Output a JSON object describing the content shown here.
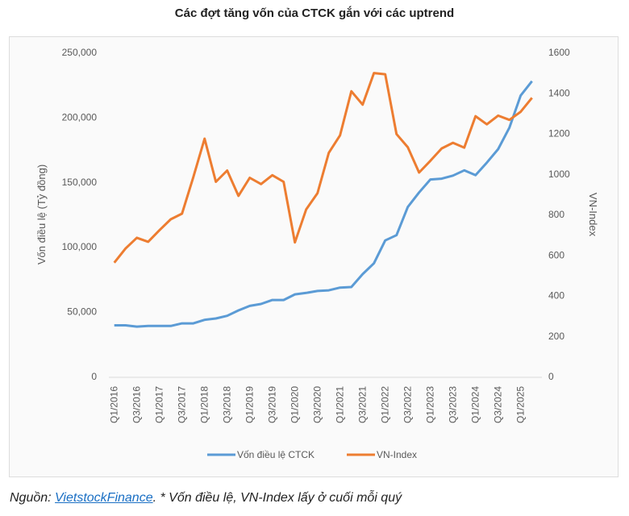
{
  "title": "Các đợt tăng vốn của CTCK gắn với các uptrend",
  "footer": {
    "prefix": "Nguồn: ",
    "link": "VietstockFinance",
    "suffix": ". * Vốn điều lệ, VN-Index lấy ở cuối mỗi quý"
  },
  "chart_data": {
    "type": "line",
    "title": "Các đợt tăng vốn của CTCK gắn với các uptrend",
    "x": [
      "Q1/2016",
      "Q2/2016",
      "Q3/2016",
      "Q4/2016",
      "Q1/2017",
      "Q2/2017",
      "Q3/2017",
      "Q4/2017",
      "Q1/2018",
      "Q2/2018",
      "Q3/2018",
      "Q4/2018",
      "Q1/2019",
      "Q2/2019",
      "Q3/2019",
      "Q4/2019",
      "Q1/2020",
      "Q2/2020",
      "Q3/2020",
      "Q4/2020",
      "Q1/2021",
      "Q2/2021",
      "Q3/2021",
      "Q4/2021",
      "Q1/2022",
      "Q2/2022",
      "Q3/2022",
      "Q4/2022",
      "Q1/2023",
      "Q2/2023",
      "Q3/2023",
      "Q4/2023",
      "Q1/2024",
      "Q2/2024",
      "Q3/2024",
      "Q4/2024",
      "Q1/2025",
      "Q2/2025"
    ],
    "tick_labels": [
      "Q1/2016",
      "Q3/2016",
      "Q1/2017",
      "Q3/2017",
      "Q1/2018",
      "Q3/2018",
      "Q1/2019",
      "Q3/2019",
      "Q1/2020",
      "Q3/2020",
      "Q1/2021",
      "Q3/2021",
      "Q1/2022",
      "Q3/2022",
      "Q1/2023",
      "Q3/2023",
      "Q1/2024",
      "Q3/2024",
      "Q1/2025"
    ],
    "ylabel": "Vốn điều lệ (Tỷ đồng)",
    "y2label": "VN-Index",
    "ylim": [
      0,
      250000
    ],
    "y2lim": [
      0,
      1600
    ],
    "yticks": [
      "0",
      "50,000",
      "100,000",
      "150,000",
      "200,000",
      "250,000"
    ],
    "y2ticks": [
      "0",
      "200",
      "400",
      "600",
      "800",
      "1000",
      "1200",
      "1400",
      "1600"
    ],
    "grid": false,
    "legend": "bottom",
    "series": [
      {
        "name": "Vốn điều lệ CTCK",
        "axis": "left",
        "color": "#5b9bd5",
        "values": [
          39500,
          39500,
          38500,
          39000,
          39000,
          39000,
          41000,
          41000,
          43700,
          44800,
          46800,
          51000,
          54500,
          56000,
          59000,
          59000,
          63400,
          64500,
          66000,
          66500,
          68600,
          69000,
          79000,
          87300,
          105000,
          109000,
          130800,
          142000,
          152000,
          152600,
          155000,
          159000,
          155300,
          165000,
          175400,
          192000,
          216800,
          227800
        ]
      },
      {
        "name": "VN-Index",
        "axis": "right",
        "color": "#ed7d31",
        "values": [
          562,
          632,
          685,
          665,
          722,
          776,
          804,
          984,
          1174,
          961,
          1017,
          892,
          981,
          950,
          994,
          961,
          662,
          825,
          905,
          1104,
          1191,
          1408,
          1342,
          1498,
          1492,
          1197,
          1132,
          1007,
          1065,
          1126,
          1154,
          1130,
          1285,
          1245,
          1288,
          1267,
          1307,
          1376
        ]
      }
    ]
  }
}
